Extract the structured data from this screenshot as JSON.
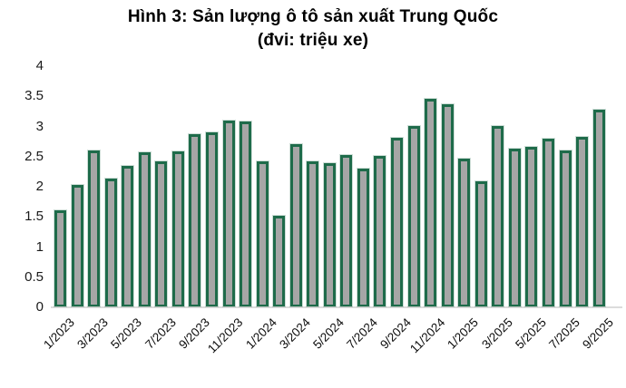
{
  "title": "Hình 3: Sản lượng ô tô sản xuất Trung Quốc",
  "subtitle": "(đvi: triệu xe)",
  "chart_data": {
    "type": "bar",
    "title": "Hình 3: Sản lượng ô tô sản xuất Trung Quốc",
    "subtitle": "(đvi: triệu xe)",
    "unit_label": "triệu xe",
    "categories": [
      "1/2023",
      "2/2023",
      "3/2023",
      "4/2023",
      "5/2023",
      "6/2023",
      "7/2023",
      "8/2023",
      "9/2023",
      "10/2023",
      "11/2023",
      "12/2023",
      "1/2024",
      "2/2024",
      "3/2024",
      "4/2024",
      "5/2024",
      "6/2024",
      "7/2024",
      "8/2024",
      "9/2024",
      "10/2024",
      "11/2024",
      "12/2024",
      "1/2025",
      "2/2025",
      "3/2025",
      "4/2025",
      "5/2025",
      "6/2025",
      "7/2025",
      "8/2025",
      "9/2025"
    ],
    "values": [
      1.59,
      2.02,
      2.58,
      2.12,
      2.33,
      2.56,
      2.4,
      2.57,
      2.85,
      2.89,
      3.09,
      3.07,
      2.41,
      1.5,
      2.69,
      2.4,
      2.37,
      2.51,
      2.29,
      2.49,
      2.8,
      2.99,
      3.45,
      3.35,
      2.45,
      2.08,
      3.0,
      2.62,
      2.65,
      2.78,
      2.59,
      2.81,
      3.27
    ],
    "x_tick_labels": [
      "1/2023",
      "3/2023",
      "5/2023",
      "7/2023",
      "9/2023",
      "11/2023",
      "1/2024",
      "3/2024",
      "5/2024",
      "7/2024",
      "9/2024",
      "11/2024",
      "1/2025",
      "3/2025",
      "5/2025",
      "7/2025",
      "9/2025"
    ],
    "x_tick_every": 2,
    "y_tick_labels": [
      "0",
      "0.5",
      "1",
      "1.5",
      "2",
      "2.5",
      "3",
      "3.5",
      "4"
    ],
    "y_ticks": [
      0,
      0.5,
      1,
      1.5,
      2,
      2.5,
      3,
      3.5,
      4
    ],
    "ylim": [
      0,
      4
    ],
    "grid": false,
    "legend": false,
    "xlabel": "",
    "ylabel": "",
    "bar_fill_color": "#a6a6a6",
    "bar_border_color": "#1e6b4a",
    "axis_line_color": "#dcdcdc",
    "text_color": "#000000"
  }
}
